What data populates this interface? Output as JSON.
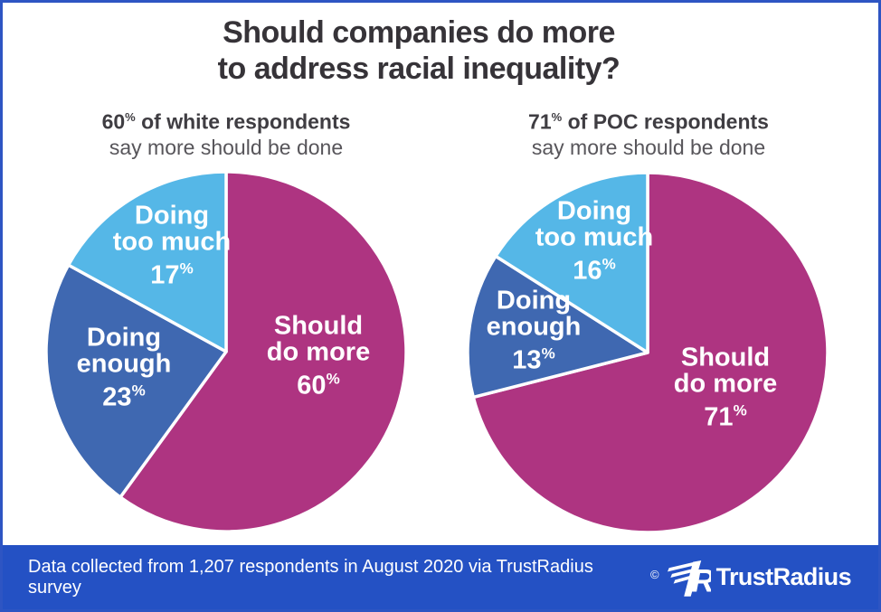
{
  "title": {
    "line1": "Should companies do more",
    "line2": "to address racial inequality?"
  },
  "subtitles": [
    {
      "stat": "60",
      "pct": "%",
      "rest": " of white respondents",
      "line2": "say more should be done"
    },
    {
      "stat": "71",
      "pct": "%",
      "rest": " of POC respondents",
      "line2": "say more should be done"
    }
  ],
  "chart_data": [
    {
      "type": "pie",
      "group": "white respondents",
      "start": "12 o'clock, clockwise",
      "slices": [
        {
          "label": "Should do more",
          "label_lines": [
            "Should",
            "do more"
          ],
          "value": 60,
          "pct": "%",
          "color": "#ae3481"
        },
        {
          "label": "Doing enough",
          "label_lines": [
            "Doing",
            "enough"
          ],
          "value": 23,
          "pct": "%",
          "color": "#3f68b1"
        },
        {
          "label": "Doing too much",
          "label_lines": [
            "Doing",
            "too much"
          ],
          "value": 17,
          "pct": "%",
          "color": "#55b7e7"
        }
      ]
    },
    {
      "type": "pie",
      "group": "POC respondents",
      "start": "12 o'clock, clockwise",
      "slices": [
        {
          "label": "Should do more",
          "label_lines": [
            "Should",
            "do more"
          ],
          "value": 71,
          "pct": "%",
          "color": "#ae3481"
        },
        {
          "label": "Doing enough",
          "label_lines": [
            "Doing",
            "enough"
          ],
          "value": 13,
          "pct": "%",
          "color": "#3f68b1"
        },
        {
          "label": "Doing too much",
          "label_lines": [
            "Doing",
            "too much"
          ],
          "value": 16,
          "pct": "%",
          "color": "#55b7e7"
        }
      ]
    }
  ],
  "footer": {
    "text": "Data collected from 1,207 respondents in August 2020 via TrustRadius survey",
    "copyright": "©",
    "brand": "TrustRadius",
    "logo_icon": "trustradius-tr-monogram"
  },
  "colors": {
    "magenta": "#ae3481",
    "blue": "#3f68b1",
    "light_blue": "#55b7e7",
    "footer_blue": "#2451c4",
    "border_blue": "#2e55c3",
    "title_text": "#363338",
    "label_text": "#ffffff"
  }
}
